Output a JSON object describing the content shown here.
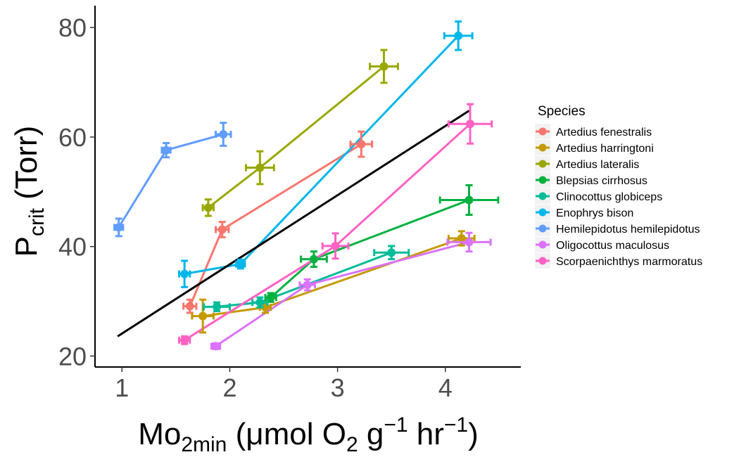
{
  "chart_data": {
    "type": "line",
    "xlabel": {
      "main": "Mo",
      "sub": "2min",
      "units": " (μmol O",
      "units_sub": "2",
      "g": " g",
      "g_sup": "−1",
      "hr": " hr",
      "hr_sup": "−1",
      "close": ")"
    },
    "ylabel": {
      "main": "P",
      "sub": "crit",
      "units": " (Torr)"
    },
    "xlim": [
      0.75,
      4.7
    ],
    "ylim": [
      18,
      84
    ],
    "xticks": [
      1,
      2,
      3,
      4
    ],
    "yticks": [
      20,
      40,
      60,
      80
    ],
    "legend": {
      "title": "Species",
      "position": "right"
    },
    "series": [
      {
        "name": "Artedius fenestralis",
        "color": "#F8766D",
        "points": [
          {
            "x": 1.63,
            "y": 29.1,
            "xerr": 0.06,
            "yerr": 1.2
          },
          {
            "x": 1.93,
            "y": 43.1,
            "xerr": 0.06,
            "yerr": 1.4
          },
          {
            "x": 3.22,
            "y": 58.7,
            "xerr": 0.1,
            "yerr": 2.3
          }
        ]
      },
      {
        "name": "Artedius harringtoni",
        "color": "#C49A00",
        "points": [
          {
            "x": 1.75,
            "y": 27.3,
            "xerr": 0.1,
            "yerr": 3.0
          },
          {
            "x": 2.33,
            "y": 28.9,
            "xerr": 0.05,
            "yerr": 1.0
          },
          {
            "x": 4.15,
            "y": 41.5,
            "xerr": 0.12,
            "yerr": 1.3
          }
        ]
      },
      {
        "name": "Artedius lateralis",
        "color": "#99A800",
        "points": [
          {
            "x": 1.8,
            "y": 47.1,
            "xerr": 0.05,
            "yerr": 1.5
          },
          {
            "x": 2.28,
            "y": 54.4,
            "xerr": 0.13,
            "yerr": 3.0
          },
          {
            "x": 3.43,
            "y": 72.9,
            "xerr": 0.13,
            "yerr": 3.0
          }
        ]
      },
      {
        "name": "Blepsias cirrhosus",
        "color": "#00B13F",
        "points": [
          {
            "x": 2.38,
            "y": 30.7,
            "xerr": 0.05,
            "yerr": 0.8
          },
          {
            "x": 2.78,
            "y": 37.7,
            "xerr": 0.12,
            "yerr": 1.4
          },
          {
            "x": 4.22,
            "y": 48.5,
            "xerr": 0.27,
            "yerr": 2.7
          }
        ]
      },
      {
        "name": "Clinocottus globiceps",
        "color": "#00BC98",
        "points": [
          {
            "x": 1.88,
            "y": 29.0,
            "xerr": 0.12,
            "yerr": 0.8
          },
          {
            "x": 2.28,
            "y": 29.8,
            "xerr": 0.07,
            "yerr": 0.9
          },
          {
            "x": 3.5,
            "y": 38.9,
            "xerr": 0.16,
            "yerr": 1.2
          }
        ]
      },
      {
        "name": "Enophrys bison",
        "color": "#00B6EB",
        "points": [
          {
            "x": 1.58,
            "y": 35.0,
            "xerr": 0.05,
            "yerr": 2.4
          },
          {
            "x": 2.1,
            "y": 36.8,
            "xerr": 0.04,
            "yerr": 0.8
          },
          {
            "x": 4.12,
            "y": 78.5,
            "xerr": 0.13,
            "yerr": 2.6
          }
        ]
      },
      {
        "name": "Hemilepidotus hemilepidotus",
        "color": "#619CFF",
        "points": [
          {
            "x": 0.97,
            "y": 43.5,
            "xerr": 0.04,
            "yerr": 1.6
          },
          {
            "x": 1.41,
            "y": 57.6,
            "xerr": 0.04,
            "yerr": 1.3
          },
          {
            "x": 1.94,
            "y": 60.5,
            "xerr": 0.07,
            "yerr": 2.1
          }
        ]
      },
      {
        "name": "Oligocottus maculosus",
        "color": "#DB72FB",
        "points": [
          {
            "x": 1.87,
            "y": 21.8,
            "xerr": 0.04,
            "yerr": 0.5
          },
          {
            "x": 2.72,
            "y": 33.0,
            "xerr": 0.07,
            "yerr": 1.0
          },
          {
            "x": 4.22,
            "y": 40.8,
            "xerr": 0.2,
            "yerr": 1.7
          }
        ]
      },
      {
        "name": "Scorpaenichthys marmoratus",
        "color": "#FF61C3",
        "points": [
          {
            "x": 1.58,
            "y": 22.9,
            "xerr": 0.05,
            "yerr": 0.7
          },
          {
            "x": 2.98,
            "y": 40.1,
            "xerr": 0.12,
            "yerr": 2.3
          },
          {
            "x": 4.23,
            "y": 62.4,
            "xerr": 0.2,
            "yerr": 3.6
          }
        ]
      }
    ],
    "regression": {
      "color": "#000000",
      "x": [
        0.96,
        4.22
      ],
      "y": [
        23.6,
        64.8
      ]
    }
  }
}
